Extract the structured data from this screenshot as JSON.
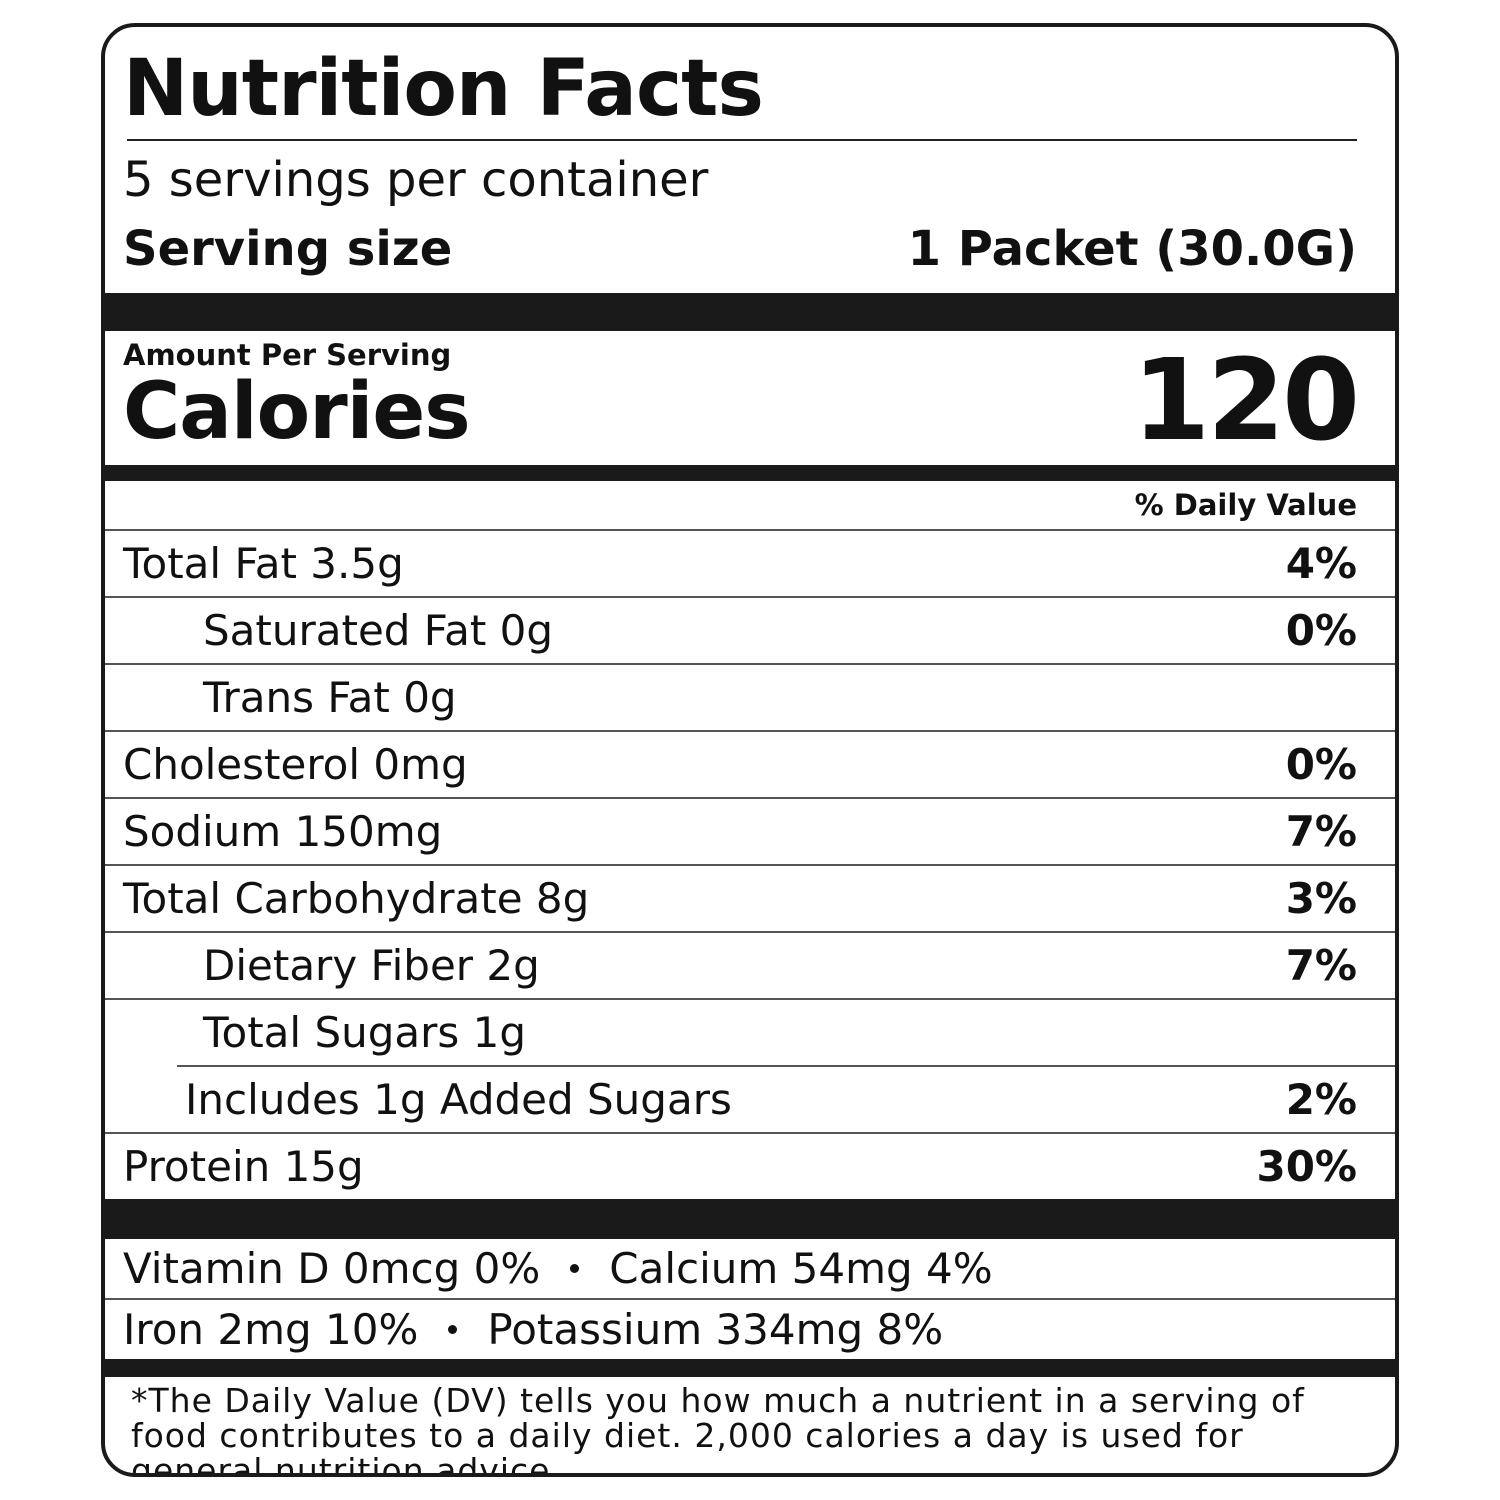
{
  "title": "Nutrition Facts",
  "servings": "5 servings per container",
  "serving_size": {
    "label": "Serving size",
    "value": "1 Packet (30.0G)"
  },
  "amount_per_serving": "Amount Per Serving",
  "calories": {
    "label": "Calories",
    "value": "120"
  },
  "daily_value_header": "% Daily Value",
  "nutrients": [
    {
      "label": "Total Fat 3.5g",
      "dv": "4%",
      "sub": [
        {
          "label": "Saturated Fat 0g",
          "dv": "0%"
        },
        {
          "label": "Trans Fat 0g"
        }
      ]
    },
    {
      "label": "Cholesterol 0mg",
      "dv": "0%"
    },
    {
      "label": "Sodium 150mg",
      "dv": "7%"
    },
    {
      "label": "Total Carbohydrate 8g",
      "dv": "3%",
      "sub": [
        {
          "label": "Dietary Fiber 2g",
          "dv": "7%"
        },
        {
          "label": "Total Sugars 1g",
          "sub": [
            {
              "label": "Includes 1g Added Sugars",
              "dv": "2%"
            }
          ]
        }
      ]
    },
    {
      "label": "Protein 15g",
      "dv": "30%"
    }
  ],
  "micronutrients": [
    [
      "Vitamin D 0mcg 0%",
      "Calcium 54mg 4%"
    ],
    [
      "Iron 2mg 10%",
      "Potassium 334mg 8%"
    ]
  ],
  "footnote": "*The Daily Value (DV) tells you how much a nutrient in a serving of food contributes to a daily diet. 2,000 calories a day is used for general nutrition advice."
}
